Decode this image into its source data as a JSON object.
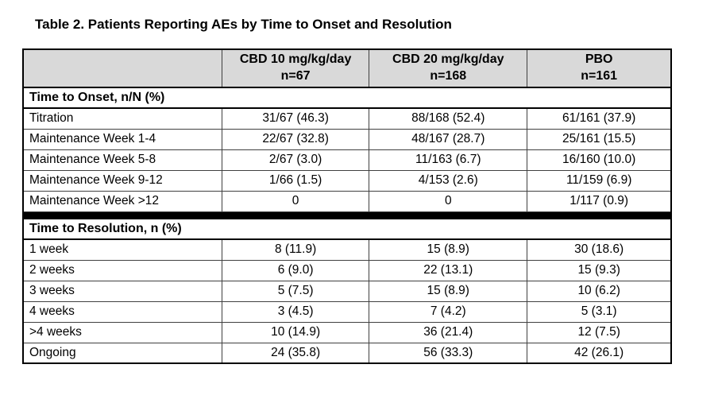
{
  "title": "Table 2. Patients Reporting AEs by Time to Onset and Resolution",
  "table": {
    "columns": [
      "",
      "CBD 10 mg/kg/day",
      "CBD 20 mg/kg/day",
      "PBO"
    ],
    "column_subs": [
      "",
      "n=67",
      "n=168",
      "n=161"
    ],
    "sections": [
      {
        "header": "Time to Onset, n/N (%)",
        "rows": [
          {
            "label": "Titration",
            "values": [
              "31/67 (46.3)",
              "88/168 (52.4)",
              "61/161 (37.9)"
            ]
          },
          {
            "label": "Maintenance Week 1-4",
            "values": [
              "22/67 (32.8)",
              "48/167 (28.7)",
              "25/161 (15.5)"
            ]
          },
          {
            "label": "Maintenance Week 5-8",
            "values": [
              "2/67 (3.0)",
              "11/163 (6.7)",
              "16/160 (10.0)"
            ]
          },
          {
            "label": "Maintenance Week 9-12",
            "values": [
              "1/66 (1.5)",
              "4/153 (2.6)",
              "11/159 (6.9)"
            ]
          },
          {
            "label": "Maintenance Week >12",
            "values": [
              "0",
              "0",
              "1/117 (0.9)"
            ]
          }
        ]
      },
      {
        "header": "Time to Resolution, n (%)",
        "rows": [
          {
            "label": "1 week",
            "values": [
              "8 (11.9)",
              "15 (8.9)",
              "30 (18.6)"
            ]
          },
          {
            "label": "2 weeks",
            "values": [
              "6 (9.0)",
              "22 (13.1)",
              "15 (9.3)"
            ]
          },
          {
            "label": "3 weeks",
            "values": [
              "5 (7.5)",
              "15 (8.9)",
              "10 (6.2)"
            ]
          },
          {
            "label": "4 weeks",
            "values": [
              "3 (4.5)",
              "7 (4.2)",
              "5 (3.1)"
            ]
          },
          {
            "label": ">4 weeks",
            "values": [
              "10 (14.9)",
              "36 (21.4)",
              "12 (7.5)"
            ]
          },
          {
            "label": "Ongoing",
            "values": [
              "24 (35.8)",
              "56 (33.3)",
              "42 (26.1)"
            ]
          }
        ]
      }
    ],
    "colors": {
      "header_bg": "#d9d9d9",
      "border": "#404040",
      "divider": "#000000"
    }
  }
}
